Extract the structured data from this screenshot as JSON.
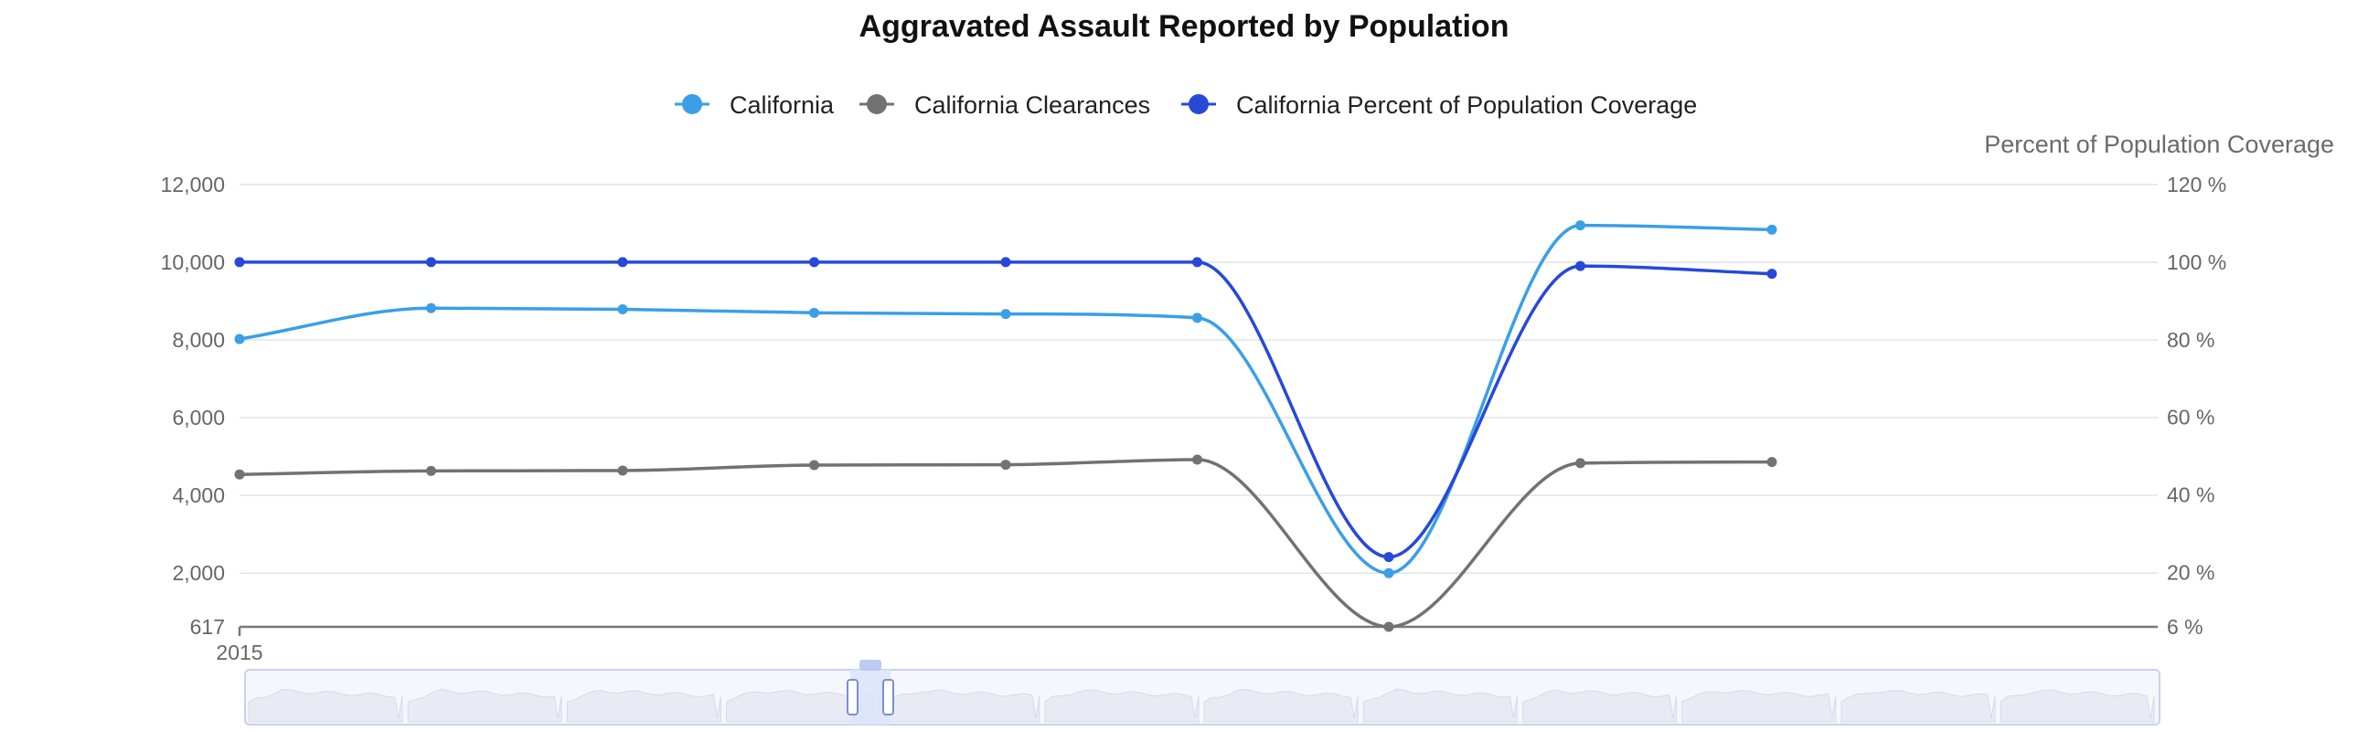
{
  "chart_data": {
    "type": "line",
    "title": "Aggravated Assault Reported by Population",
    "x": [
      "2015",
      "",
      "",
      "",
      "",
      "",
      "",
      "",
      ""
    ],
    "series": [
      {
        "name": "California",
        "axis": "left",
        "color": "#3a9fe6",
        "values": [
          8024,
          8820,
          8790,
          8700,
          8670,
          8570,
          2000,
          10950,
          10840
        ]
      },
      {
        "name": "California Clearances",
        "axis": "left",
        "color": "#727272",
        "values": [
          4540,
          4630,
          4640,
          4780,
          4790,
          4920,
          617,
          4830,
          4860
        ]
      },
      {
        "name": "California Percent of Population Coverage",
        "axis": "right",
        "color": "#2649d8",
        "values": [
          100,
          100,
          100,
          100,
          100,
          100,
          24,
          99,
          97
        ]
      }
    ],
    "left_axis": {
      "min": 617,
      "max": 12000,
      "ticks": [
        "617",
        "2,000",
        "4,000",
        "6,000",
        "8,000",
        "10,000",
        "12,000"
      ],
      "tick_values": [
        617,
        2000,
        4000,
        6000,
        8000,
        10000,
        12000
      ]
    },
    "right_axis": {
      "title": "Percent of Population Coverage",
      "min": 6,
      "max": 120,
      "ticks": [
        "6 %",
        "20 %",
        "40 %",
        "60 %",
        "80 %",
        "100 %",
        "120 %"
      ],
      "tick_values": [
        6,
        20,
        40,
        60,
        80,
        100,
        120
      ]
    },
    "grid": true,
    "legend_position": "top-center",
    "navigator": {
      "visible": true
    }
  }
}
